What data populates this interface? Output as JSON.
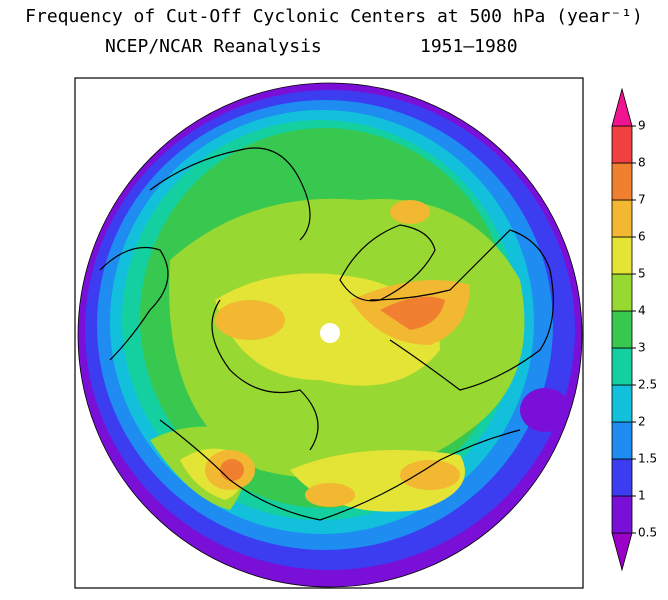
{
  "title": "Frequency of Cut-Off Cyclonic Centers at 500 hPa (year⁻¹)",
  "subtitle_left": "NCEP/NCAR Reanalysis",
  "subtitle_right": "1951–1980",
  "colorbar": {
    "ticks": [
      0.5,
      1,
      1.5,
      2,
      2.5,
      3,
      4,
      5,
      6,
      7,
      8,
      9
    ],
    "colors": [
      "#9a00c8",
      "#7a10d8",
      "#3c3cf0",
      "#1e8cf0",
      "#12c0dc",
      "#14d0a0",
      "#38c850",
      "#98d832",
      "#e4e436",
      "#f2b832",
      "#f08030",
      "#f04040",
      "#f01490"
    ]
  }
}
